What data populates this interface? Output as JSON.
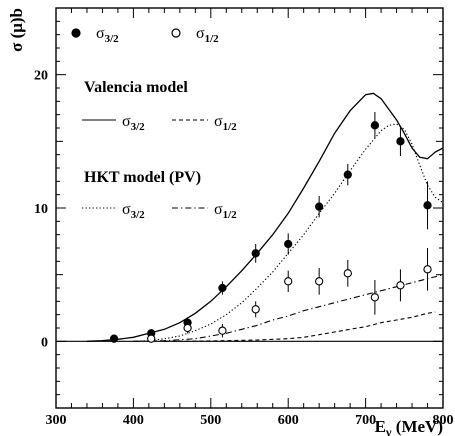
{
  "chart_data": {
    "type": "line",
    "title": "",
    "xlabel": "E",
    "xlabel_sub": "γ",
    "xlabel_unit": " (MeV)",
    "ylabel": "σ (μ)b",
    "xlim": [
      300,
      800
    ],
    "ylim": [
      -5,
      25
    ],
    "x_ticks": [
      300,
      400,
      500,
      600,
      700,
      800
    ],
    "y_ticks": [
      0,
      10,
      20
    ],
    "grid": false,
    "zero_line": true,
    "legend": {
      "data_entries": [
        {
          "marker": "filled-circle",
          "label": "σ",
          "sub": "3/2"
        },
        {
          "marker": "open-circle",
          "label": "σ",
          "sub": "1/2"
        }
      ],
      "groups": [
        {
          "title": "Valencia model",
          "entries": [
            {
              "style": "solid",
              "label": "σ",
              "sub": "3/2"
            },
            {
              "style": "dashed",
              "label": "σ",
              "sub": "1/2"
            }
          ]
        },
        {
          "title": "HKT model (PV)",
          "entries": [
            {
              "style": "dotted",
              "label": "σ",
              "sub": "3/2"
            },
            {
              "style": "dashdot",
              "label": "σ",
              "sub": "1/2"
            }
          ]
        }
      ]
    },
    "data_series": [
      {
        "marker": "filled",
        "points": [
          {
            "x": 375,
            "y": 0.2,
            "err": 0.2
          },
          {
            "x": 423,
            "y": 0.6,
            "err": 0.3
          },
          {
            "x": 470,
            "y": 1.4,
            "err": 0.4
          },
          {
            "x": 515,
            "y": 4.0,
            "err": 0.5
          },
          {
            "x": 558,
            "y": 6.6,
            "err": 0.7
          },
          {
            "x": 600,
            "y": 7.3,
            "err": 0.8
          },
          {
            "x": 640,
            "y": 10.1,
            "err": 0.8
          },
          {
            "x": 677,
            "y": 12.5,
            "err": 0.8
          },
          {
            "x": 712,
            "y": 16.2,
            "err": 1.0
          },
          {
            "x": 745,
            "y": 15.0,
            "err": 1.1
          },
          {
            "x": 780,
            "y": 10.2,
            "err": 1.8
          }
        ]
      },
      {
        "marker": "open",
        "points": [
          {
            "x": 423,
            "y": 0.2,
            "err": 0.2
          },
          {
            "x": 470,
            "y": 1.0,
            "err": 0.4
          },
          {
            "x": 515,
            "y": 0.8,
            "err": 0.5
          },
          {
            "x": 558,
            "y": 2.4,
            "err": 0.6
          },
          {
            "x": 600,
            "y": 4.5,
            "err": 0.8
          },
          {
            "x": 640,
            "y": 4.5,
            "err": 1.0
          },
          {
            "x": 677,
            "y": 5.1,
            "err": 1.0
          },
          {
            "x": 712,
            "y": 3.3,
            "err": 1.3
          },
          {
            "x": 745,
            "y": 4.2,
            "err": 1.2
          },
          {
            "x": 780,
            "y": 5.4,
            "err": 1.6
          }
        ]
      }
    ],
    "model_curves": [
      {
        "style": "solid",
        "x": [
          340,
          360,
          380,
          400,
          420,
          440,
          460,
          480,
          500,
          520,
          540,
          560,
          580,
          600,
          620,
          640,
          660,
          680,
          700,
          710,
          720,
          730,
          740,
          750,
          760,
          770,
          780,
          790,
          800
        ],
        "y": [
          0,
          0.05,
          0.15,
          0.3,
          0.6,
          0.9,
          1.4,
          2.1,
          3.0,
          4.1,
          5.3,
          6.6,
          8.0,
          9.6,
          11.5,
          13.5,
          15.6,
          17.3,
          18.5,
          18.6,
          18.2,
          17.4,
          16.6,
          15.6,
          14.5,
          13.8,
          13.7,
          14.2,
          14.5
        ]
      },
      {
        "style": "dotted",
        "x": [
          400,
          420,
          440,
          460,
          480,
          500,
          520,
          540,
          560,
          580,
          600,
          620,
          640,
          660,
          680,
          700,
          720,
          730,
          740,
          750,
          760,
          770,
          780,
          790,
          800
        ],
        "y": [
          0,
          0.05,
          0.2,
          0.4,
          0.8,
          1.3,
          2.0,
          2.9,
          4.0,
          5.2,
          6.6,
          8.0,
          9.6,
          11.1,
          12.8,
          14.4,
          15.8,
          16.2,
          16.3,
          15.9,
          14.8,
          13.2,
          11.7,
          10.8,
          10.4
        ]
      },
      {
        "style": "dashdot",
        "x": [
          400,
          440,
          480,
          500,
          520,
          540,
          560,
          580,
          600,
          620,
          640,
          660,
          680,
          700,
          720,
          740,
          760,
          780,
          800
        ],
        "y": [
          0,
          0.05,
          0.2,
          0.4,
          0.6,
          0.9,
          1.2,
          1.6,
          1.9,
          2.3,
          2.6,
          2.9,
          3.2,
          3.5,
          3.8,
          4.1,
          4.4,
          4.7,
          5.0
        ]
      },
      {
        "style": "dashed",
        "x": [
          440,
          480,
          520,
          560,
          600,
          620,
          640,
          660,
          680,
          700,
          720,
          740,
          760,
          780,
          790
        ],
        "y": [
          0,
          0.02,
          0.05,
          0.1,
          0.2,
          0.3,
          0.5,
          0.7,
          0.9,
          1.1,
          1.4,
          1.6,
          1.8,
          2.1,
          2.2
        ]
      }
    ]
  }
}
